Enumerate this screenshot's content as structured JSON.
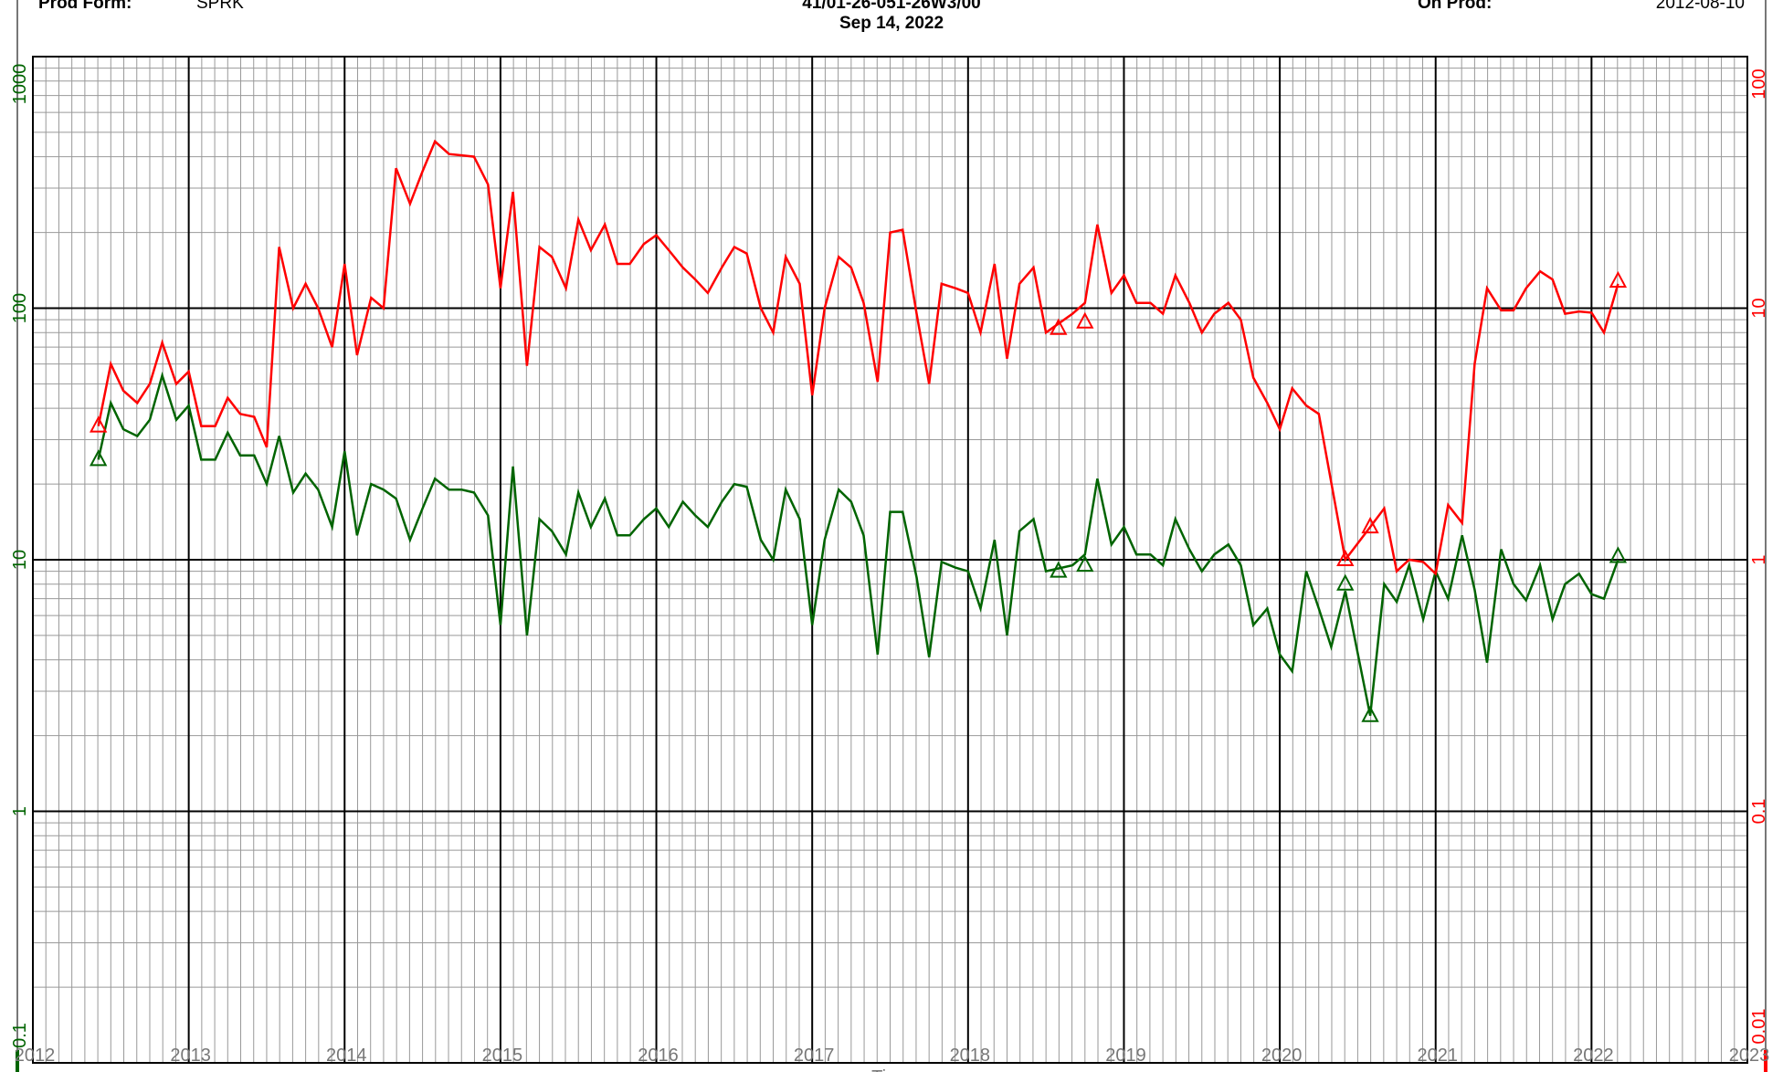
{
  "header": {
    "prod_form_label": "Prod Form:",
    "prod_form_value": "SPRK",
    "uwi": "41/01-26-051-26W3/00",
    "date": "Sep 14, 2022",
    "on_prod_label": "On Prod:",
    "on_prod_value": "2012-08-10"
  },
  "colors": {
    "series_green": "#006400",
    "series_red": "#ff0000",
    "grid_major": "#000000",
    "grid_minor": "#999999"
  },
  "chart_data": {
    "type": "line",
    "title": "41/01-26-051-26W3/00",
    "subtitle": "Sep 14, 2022",
    "xlabel": "Time",
    "x_range": [
      2012.0,
      2023.0
    ],
    "x_ticks": [
      "2012",
      "2013",
      "2014",
      "2015",
      "2016",
      "2017",
      "2018",
      "2019",
      "2020",
      "2021",
      "2022",
      "2023"
    ],
    "y_left": {
      "scale": "log",
      "range": [
        0.1,
        1000
      ],
      "ticks": [
        "0.1",
        "1",
        "10",
        "100",
        "1000"
      ],
      "color": "#006400"
    },
    "y_right": {
      "scale": "log",
      "range": [
        0.01,
        100
      ],
      "ticks": [
        "0.01",
        "0.1",
        "1",
        "10",
        "100"
      ],
      "color": "#ff0000"
    },
    "grid": true,
    "series": [
      {
        "axis": "left",
        "color": "#006400",
        "points": [
          [
            2012.42,
            25
          ],
          [
            2012.5,
            42
          ],
          [
            2012.58,
            33
          ],
          [
            2012.67,
            31
          ],
          [
            2012.75,
            36
          ],
          [
            2012.83,
            54
          ],
          [
            2012.92,
            36
          ],
          [
            2013.0,
            41
          ],
          [
            2013.08,
            25
          ],
          [
            2013.17,
            25
          ],
          [
            2013.25,
            32
          ],
          [
            2013.33,
            26
          ],
          [
            2013.42,
            26
          ],
          [
            2013.5,
            20
          ],
          [
            2013.58,
            31
          ],
          [
            2013.67,
            18.5
          ],
          [
            2013.75,
            22
          ],
          [
            2013.83,
            19
          ],
          [
            2013.92,
            13.5
          ],
          [
            2014.0,
            27
          ],
          [
            2014.08,
            12.5
          ],
          [
            2014.17,
            20
          ],
          [
            2014.25,
            19
          ],
          [
            2014.33,
            17.5
          ],
          [
            2014.42,
            12
          ],
          [
            2014.5,
            16
          ],
          [
            2014.58,
            21
          ],
          [
            2014.67,
            19
          ],
          [
            2014.75,
            19
          ],
          [
            2014.83,
            18.5
          ],
          [
            2014.92,
            15
          ],
          [
            2015.0,
            5.5
          ],
          [
            2015.08,
            23.5
          ],
          [
            2015.17,
            5
          ],
          [
            2015.25,
            14.5
          ],
          [
            2015.33,
            13
          ],
          [
            2015.42,
            10.5
          ],
          [
            2015.5,
            18.5
          ],
          [
            2015.58,
            13.5
          ],
          [
            2015.67,
            17.5
          ],
          [
            2015.75,
            12.5
          ],
          [
            2015.83,
            12.5
          ],
          [
            2015.92,
            14.5
          ],
          [
            2016.0,
            16
          ],
          [
            2016.08,
            13.5
          ],
          [
            2016.17,
            17
          ],
          [
            2016.25,
            15
          ],
          [
            2016.33,
            13.5
          ],
          [
            2016.42,
            17
          ],
          [
            2016.5,
            20
          ],
          [
            2016.58,
            19.5
          ],
          [
            2016.67,
            12
          ],
          [
            2016.75,
            10
          ],
          [
            2016.83,
            19
          ],
          [
            2016.92,
            14.5
          ],
          [
            2017.0,
            5.5
          ],
          [
            2017.08,
            12
          ],
          [
            2017.17,
            19
          ],
          [
            2017.25,
            17
          ],
          [
            2017.33,
            12.5
          ],
          [
            2017.42,
            4.2
          ],
          [
            2017.5,
            15.5
          ],
          [
            2017.58,
            15.5
          ],
          [
            2017.67,
            8.5
          ],
          [
            2017.75,
            4.1
          ],
          [
            2017.83,
            9.8
          ],
          [
            2017.92,
            9.3
          ],
          [
            2018.0,
            9
          ],
          [
            2018.08,
            6.4
          ],
          [
            2018.17,
            12
          ],
          [
            2018.25,
            5
          ],
          [
            2018.33,
            13
          ],
          [
            2018.42,
            14.5
          ],
          [
            2018.5,
            9
          ],
          [
            2018.67,
            9.5
          ],
          [
            2018.75,
            10.5
          ],
          [
            2018.83,
            21
          ],
          [
            2018.92,
            11.5
          ],
          [
            2019.0,
            13.5
          ],
          [
            2019.08,
            10.5
          ],
          [
            2019.17,
            10.5
          ],
          [
            2019.25,
            9.5
          ],
          [
            2019.33,
            14.5
          ],
          [
            2019.42,
            11
          ],
          [
            2019.5,
            9
          ],
          [
            2019.58,
            10.5
          ],
          [
            2019.67,
            11.5
          ],
          [
            2019.75,
            9.5
          ],
          [
            2019.83,
            5.5
          ],
          [
            2019.92,
            6.4
          ],
          [
            2020.0,
            4.2
          ],
          [
            2020.08,
            3.6
          ],
          [
            2020.17,
            9
          ],
          [
            2020.25,
            6.4
          ],
          [
            2020.33,
            4.5
          ],
          [
            2020.42,
            7.5
          ],
          [
            2020.58,
            2.4
          ],
          [
            2020.67,
            8
          ],
          [
            2020.75,
            6.8
          ],
          [
            2020.83,
            9.5
          ],
          [
            2020.92,
            5.8
          ],
          [
            2021.0,
            9
          ],
          [
            2021.08,
            7
          ],
          [
            2021.17,
            12.5
          ],
          [
            2021.25,
            7.6
          ],
          [
            2021.33,
            3.9
          ],
          [
            2021.42,
            11
          ],
          [
            2021.5,
            8
          ],
          [
            2021.58,
            6.9
          ],
          [
            2021.67,
            9.5
          ],
          [
            2021.75,
            5.8
          ],
          [
            2021.83,
            8
          ],
          [
            2021.92,
            8.8
          ],
          [
            2022.0,
            7.3
          ],
          [
            2022.08,
            7
          ],
          [
            2022.17,
            10
          ]
        ],
        "markers": [
          [
            2012.42,
            25
          ],
          [
            2018.58,
            9
          ],
          [
            2018.75,
            9.5
          ],
          [
            2020.42,
            8
          ],
          [
            2020.58,
            2.4
          ],
          [
            2022.17,
            10.3
          ]
        ]
      },
      {
        "axis": "right",
        "color": "#ff0000",
        "points": [
          [
            2012.42,
            3.4
          ],
          [
            2012.5,
            6
          ],
          [
            2012.58,
            4.7
          ],
          [
            2012.67,
            4.2
          ],
          [
            2012.75,
            5
          ],
          [
            2012.83,
            7.3
          ],
          [
            2012.92,
            5
          ],
          [
            2013.0,
            5.6
          ],
          [
            2013.08,
            3.4
          ],
          [
            2013.17,
            3.4
          ],
          [
            2013.25,
            4.4
          ],
          [
            2013.33,
            3.8
          ],
          [
            2013.42,
            3.7
          ],
          [
            2013.5,
            2.8
          ],
          [
            2013.58,
            17.5
          ],
          [
            2013.67,
            10
          ],
          [
            2013.75,
            12.5
          ],
          [
            2013.83,
            10
          ],
          [
            2013.92,
            7
          ],
          [
            2014.0,
            15
          ],
          [
            2014.08,
            6.5
          ],
          [
            2014.17,
            11
          ],
          [
            2014.25,
            10
          ],
          [
            2014.33,
            36
          ],
          [
            2014.42,
            26
          ],
          [
            2014.5,
            35
          ],
          [
            2014.58,
            46
          ],
          [
            2014.67,
            41
          ],
          [
            2014.75,
            40.5
          ],
          [
            2014.83,
            40
          ],
          [
            2014.92,
            31
          ],
          [
            2015.0,
            12
          ],
          [
            2015.08,
            29
          ],
          [
            2015.17,
            5.9
          ],
          [
            2015.25,
            17.5
          ],
          [
            2015.33,
            16
          ],
          [
            2015.42,
            12
          ],
          [
            2015.5,
            22.5
          ],
          [
            2015.58,
            17
          ],
          [
            2015.67,
            21.5
          ],
          [
            2015.75,
            15
          ],
          [
            2015.83,
            15
          ],
          [
            2015.92,
            18
          ],
          [
            2016.0,
            19.5
          ],
          [
            2016.08,
            17
          ],
          [
            2016.17,
            14.5
          ],
          [
            2016.25,
            13
          ],
          [
            2016.33,
            11.5
          ],
          [
            2016.42,
            14.5
          ],
          [
            2016.5,
            17.5
          ],
          [
            2016.58,
            16.5
          ],
          [
            2016.67,
            10
          ],
          [
            2016.75,
            8
          ],
          [
            2016.83,
            16
          ],
          [
            2016.92,
            12.5
          ],
          [
            2017.0,
            4.5
          ],
          [
            2017.08,
            10
          ],
          [
            2017.17,
            16
          ],
          [
            2017.25,
            14.5
          ],
          [
            2017.33,
            10.5
          ],
          [
            2017.42,
            5.1
          ],
          [
            2017.5,
            20
          ],
          [
            2017.58,
            20.5
          ],
          [
            2017.67,
            9.5
          ],
          [
            2017.75,
            5
          ],
          [
            2017.83,
            12.5
          ],
          [
            2017.92,
            12
          ],
          [
            2018.0,
            11.5
          ],
          [
            2018.08,
            8
          ],
          [
            2018.17,
            15
          ],
          [
            2018.25,
            6.3
          ],
          [
            2018.33,
            12.5
          ],
          [
            2018.42,
            14.5
          ],
          [
            2018.5,
            8
          ],
          [
            2018.67,
            9.5
          ],
          [
            2018.75,
            10.5
          ],
          [
            2018.83,
            21.5
          ],
          [
            2018.92,
            11.5
          ],
          [
            2019.0,
            13.5
          ],
          [
            2019.08,
            10.5
          ],
          [
            2019.17,
            10.5
          ],
          [
            2019.25,
            9.5
          ],
          [
            2019.33,
            13.5
          ],
          [
            2019.42,
            10.5
          ],
          [
            2019.5,
            8
          ],
          [
            2019.58,
            9.5
          ],
          [
            2019.67,
            10.5
          ],
          [
            2019.75,
            9
          ],
          [
            2019.83,
            5.3
          ],
          [
            2019.92,
            4.2
          ],
          [
            2020.0,
            3.3
          ],
          [
            2020.08,
            4.8
          ],
          [
            2020.17,
            4.1
          ],
          [
            2020.25,
            3.8
          ],
          [
            2020.42,
            1
          ],
          [
            2020.58,
            1.35
          ],
          [
            2020.67,
            1.6
          ],
          [
            2020.75,
            0.9
          ],
          [
            2020.83,
            1
          ],
          [
            2020.92,
            0.98
          ],
          [
            2021.0,
            0.88
          ],
          [
            2021.08,
            1.65
          ],
          [
            2021.17,
            1.4
          ],
          [
            2021.25,
            6
          ],
          [
            2021.33,
            12
          ],
          [
            2021.42,
            9.8
          ],
          [
            2021.5,
            9.8
          ],
          [
            2021.58,
            12
          ],
          [
            2021.67,
            14
          ],
          [
            2021.75,
            13
          ],
          [
            2021.83,
            9.5
          ],
          [
            2021.92,
            9.7
          ],
          [
            2022.0,
            9.6
          ],
          [
            2022.08,
            8
          ],
          [
            2022.17,
            12.5
          ]
        ],
        "markers": [
          [
            2012.42,
            3.4
          ],
          [
            2018.58,
            8.3
          ],
          [
            2018.75,
            8.8
          ],
          [
            2020.42,
            1.0
          ],
          [
            2020.58,
            1.35
          ],
          [
            2022.17,
            12.8
          ]
        ]
      }
    ]
  }
}
